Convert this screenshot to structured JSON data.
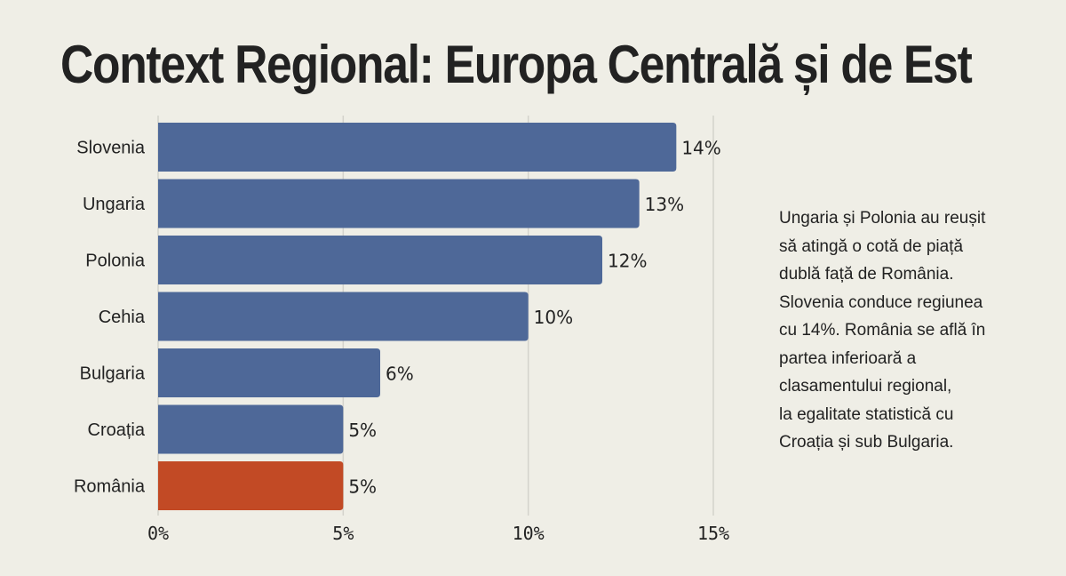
{
  "chart_data": {
    "type": "bar",
    "orientation": "horizontal",
    "title": "Context Regional: Europa Centrală și de Est",
    "categories": [
      "Slovenia",
      "Ungaria",
      "Polonia",
      "Cehia",
      "Bulgaria",
      "Croația",
      "România"
    ],
    "values": [
      14,
      13,
      12,
      10,
      6,
      5,
      5
    ],
    "value_labels": [
      "14%",
      "13%",
      "12%",
      "10%",
      "6%",
      "5%",
      "5%"
    ],
    "highlight": "România",
    "xlim": [
      0,
      15
    ],
    "xticks": [
      0,
      5,
      10,
      15
    ],
    "xtick_labels": [
      "0%",
      "5%",
      "10%",
      "15%"
    ],
    "xlabel": "",
    "ylabel": "",
    "grid": true,
    "colors": {
      "default": "#4e6898",
      "highlight": "#c24a25",
      "grid": "#d4d3cc"
    }
  },
  "note_lines": [
    "Ungaria și Polonia au reușit",
    "să atingă o cotă de piață",
    "dublă față de România.",
    "Slovenia conduce regiunea",
    "cu 14%. România se află în",
    "partea inferioară a",
    "clasamentului regional,",
    "la egalitate statistică cu",
    "Croația și sub Bulgaria."
  ]
}
